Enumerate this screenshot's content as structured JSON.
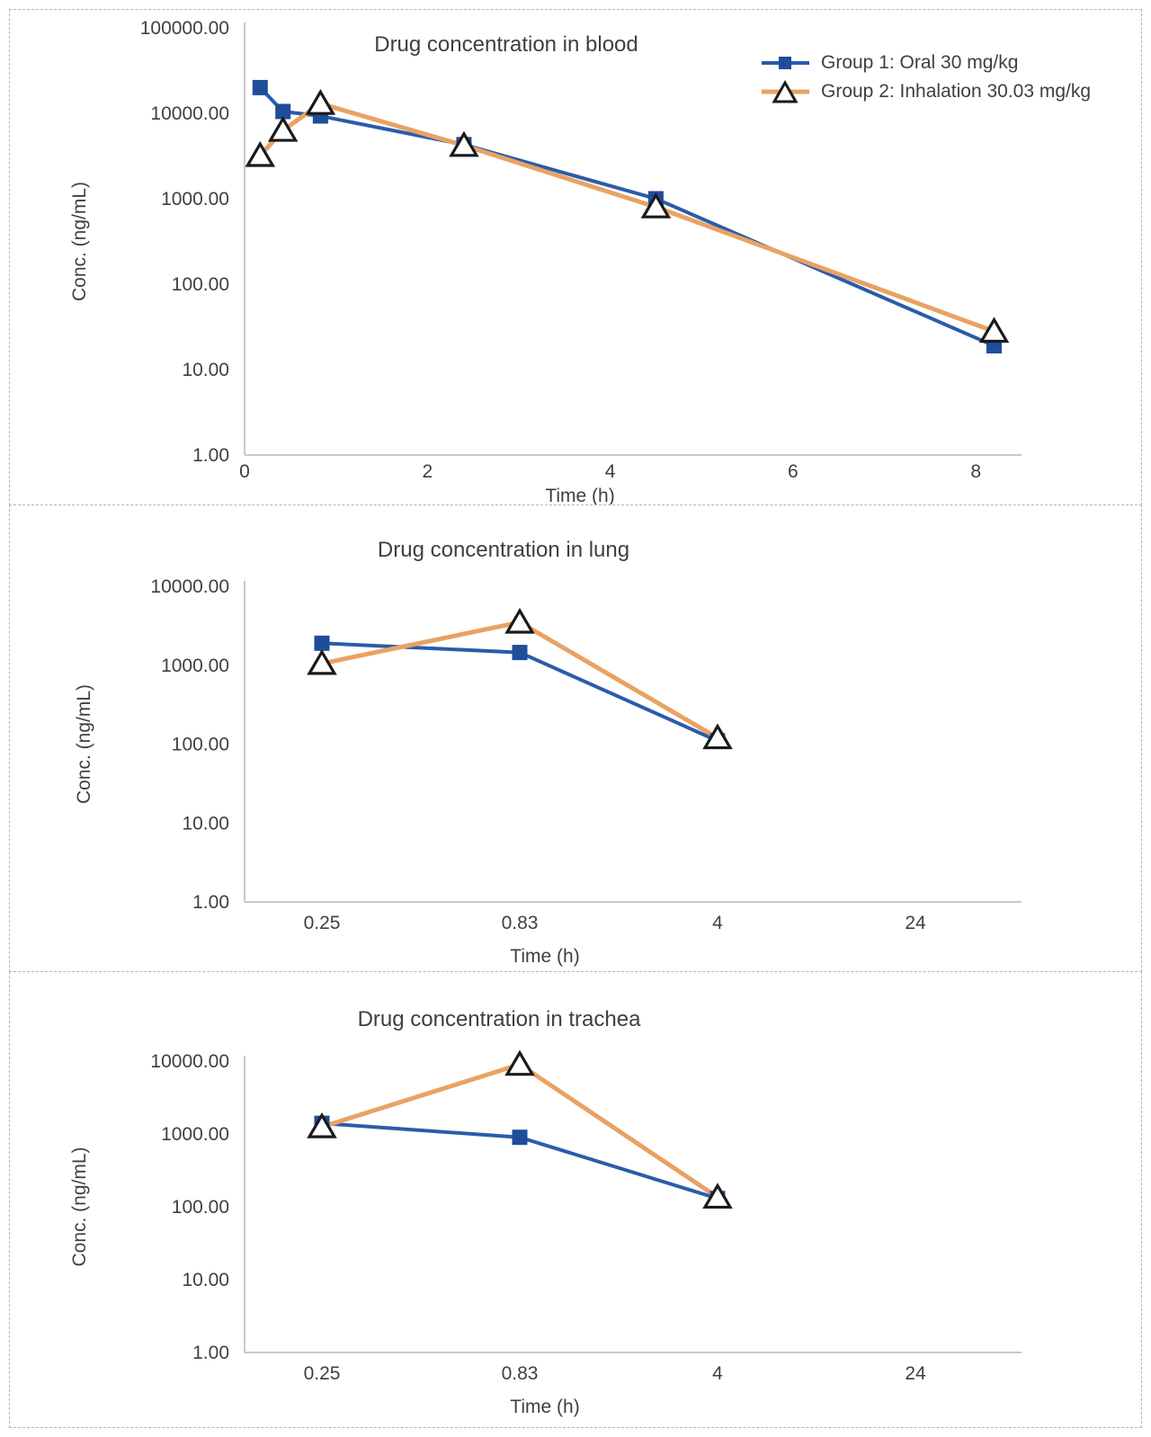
{
  "colors": {
    "group1_line": "#2a5caa",
    "group1_fill": "#1f4d9a",
    "group2_line": "#e9a264",
    "triangle_fill": "#ffffff",
    "triangle_stroke": "#1a1a1a",
    "text": "#3f3f3f",
    "axis_line": "#c9c9c9",
    "panel_border": "#b5b5b5"
  },
  "legend": {
    "position": "top-right",
    "entries": [
      {
        "label": "Group 1: Oral 30 mg/kg",
        "marker": "square"
      },
      {
        "label": "Group 2: Inhalation 30.03 mg/kg",
        "marker": "triangle"
      }
    ]
  },
  "chart_data": [
    {
      "type": "line",
      "title": "Drug concentration in blood",
      "xlabel": "Time (h)",
      "ylabel": "Conc. (ng/mL)",
      "y_scale": "log",
      "ylim": [
        1,
        100000
      ],
      "y_tick_labels": [
        "100000.00",
        "10000.00",
        "1000.00",
        "100.00",
        "10.00",
        "1.00"
      ],
      "x_axis": {
        "type": "linear",
        "min": 0,
        "max": 8.5,
        "tick_labels": [
          "0",
          "2",
          "4",
          "6",
          "8"
        ],
        "tick_values": [
          0,
          2,
          4,
          6,
          8
        ]
      },
      "grid": false,
      "has_legend": true,
      "series": [
        {
          "name": "Group 1: Oral 30 mg/kg",
          "marker": "square",
          "x": [
            0.17,
            0.42,
            0.83,
            2.4,
            4.5,
            8.2
          ],
          "y": [
            20000,
            10500,
            9300,
            4300,
            1000,
            19
          ]
        },
        {
          "name": "Group 2: Inhalation 30.03 mg/kg",
          "marker": "triangle",
          "x": [
            0.17,
            0.42,
            0.83,
            2.4,
            4.5,
            8.2
          ],
          "y": [
            3200,
            6300,
            13000,
            4200,
            800,
            28
          ]
        }
      ]
    },
    {
      "type": "line",
      "title": "Drug concentration in lung",
      "xlabel": "Time (h)",
      "ylabel": "Conc. (ng/mL)",
      "y_scale": "log",
      "ylim": [
        1,
        10000
      ],
      "y_tick_labels": [
        "10000.00",
        "1000.00",
        "100.00",
        "10.00",
        "1.00"
      ],
      "x_axis": {
        "type": "category",
        "categories": [
          "0.25",
          "0.83",
          "4",
          "24"
        ]
      },
      "grid": false,
      "has_legend": false,
      "series": [
        {
          "name": "Group 1: Oral 30 mg/kg",
          "marker": "square",
          "x_index": [
            0,
            1,
            2
          ],
          "y": [
            1900,
            1450,
            110
          ]
        },
        {
          "name": "Group 2: Inhalation 30.03 mg/kg",
          "marker": "triangle",
          "x_index": [
            0,
            1,
            2
          ],
          "y": [
            1050,
            3500,
            120
          ]
        }
      ]
    },
    {
      "type": "line",
      "title": "Drug concentration in trachea",
      "xlabel": "Time (h)",
      "ylabel": "Conc. (ng/mL)",
      "y_scale": "log",
      "ylim": [
        1,
        10000
      ],
      "y_tick_labels": [
        "10000.00",
        "1000.00",
        "100.00",
        "10.00",
        "1.00"
      ],
      "x_axis": {
        "type": "category",
        "categories": [
          "0.25",
          "0.83",
          "4",
          "24"
        ]
      },
      "grid": false,
      "has_legend": false,
      "series": [
        {
          "name": "Group 1: Oral 30 mg/kg",
          "marker": "square",
          "x_index": [
            0,
            1,
            2
          ],
          "y": [
            1400,
            900,
            130
          ]
        },
        {
          "name": "Group 2: Inhalation 30.03 mg/kg",
          "marker": "triangle",
          "x_index": [
            0,
            1,
            2
          ],
          "y": [
            1250,
            9000,
            135
          ]
        }
      ]
    }
  ]
}
